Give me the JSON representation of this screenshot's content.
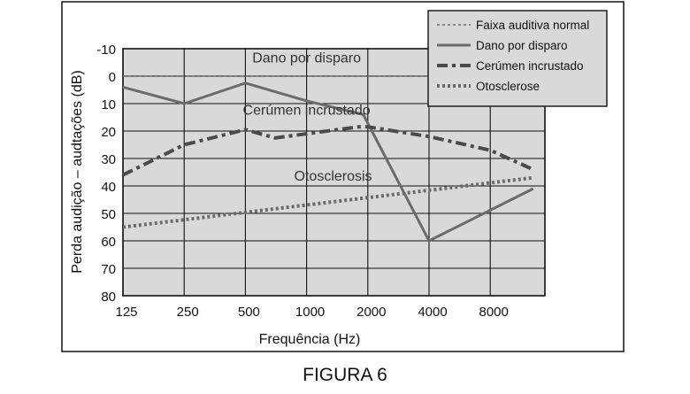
{
  "caption": "FIGURA 6",
  "chart_data": {
    "type": "line",
    "title": "",
    "xlabel": "Frequência (Hz)",
    "ylabel": "Perda audição – audtações (dB)",
    "x_ticks": [
      "125",
      "250",
      "500",
      "1000",
      "2000",
      "4000",
      "8000"
    ],
    "x_tick_positions": [
      125,
      250,
      500,
      1000,
      2000,
      4000,
      8000
    ],
    "x_range_hz": [
      125,
      13000
    ],
    "y_ticks": [
      "-10",
      "0",
      "10",
      "20",
      "30",
      "40",
      "50",
      "60",
      "70",
      "80"
    ],
    "y_tick_values": [
      -10,
      0,
      10,
      20,
      30,
      40,
      50,
      60,
      70,
      80
    ],
    "ylim": [
      -10,
      80
    ],
    "y_inverted": true,
    "x_scale": "log",
    "grid": true,
    "legend_position": "top-right",
    "series": [
      {
        "name": "Faixa auditiva normal",
        "style": "dotted-thin",
        "color": "#555555",
        "x": [
          125,
          13000
        ],
        "y": [
          0,
          0
        ]
      },
      {
        "name": "Dano por disparo",
        "style": "solid",
        "color": "#6b6b6b",
        "x": [
          125,
          250,
          500,
          1000,
          1900,
          4000,
          13000
        ],
        "y": [
          4,
          10,
          2.5,
          9,
          14,
          60,
          41
        ]
      },
      {
        "name": "Cerúmen incrustado",
        "style": "dash-dot",
        "color": "#4a4a4a",
        "x": [
          125,
          250,
          500,
          700,
          1000,
          1800,
          2000,
          4000,
          8000,
          13000
        ],
        "y": [
          36,
          25,
          19.5,
          22.5,
          21,
          18.5,
          18.5,
          22,
          27,
          34
        ]
      },
      {
        "name": "Otosclerose",
        "style": "dotted-thick",
        "color": "#6b6b6b",
        "x": [
          125,
          13000
        ],
        "y": [
          55,
          37
        ]
      }
    ],
    "annotations": [
      {
        "text": "Dano por disparo",
        "x": 1000,
        "y": -5
      },
      {
        "text": "Cerúmen incrustado",
        "x": 1000,
        "y": 14
      },
      {
        "text": "Otosclerosis",
        "x": 1350,
        "y": 38
      }
    ]
  }
}
